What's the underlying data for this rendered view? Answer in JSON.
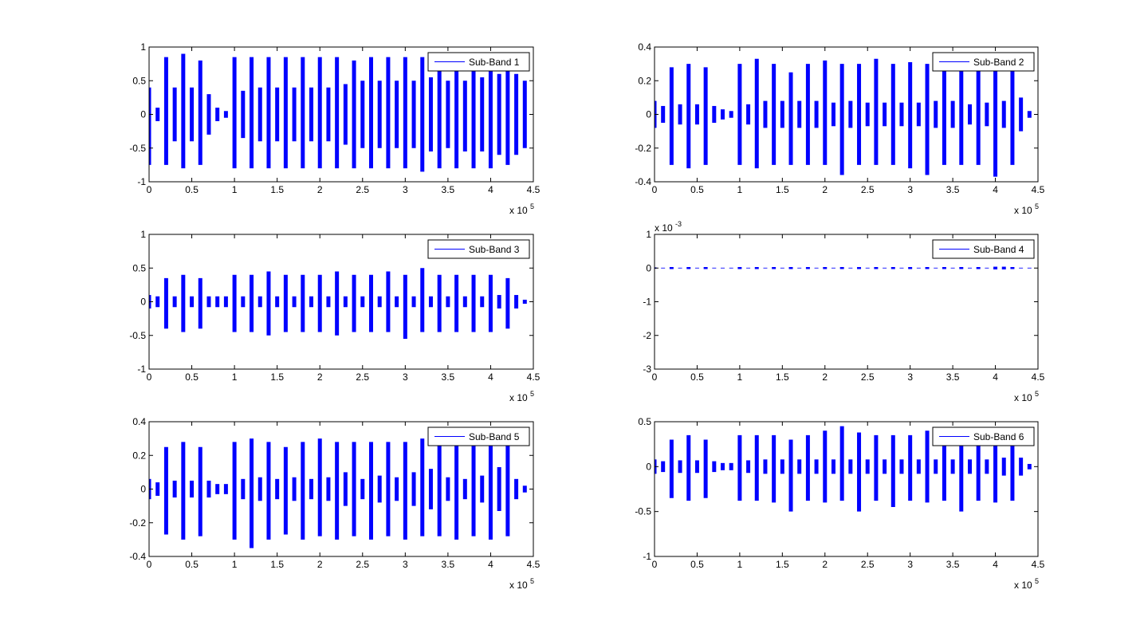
{
  "chart_data": [
    {
      "type": "waveform",
      "x_multiplier": "x 10",
      "x_multiplier_exponent": "5",
      "x": [
        0,
        0.1,
        0.2,
        0.3,
        0.4,
        0.5,
        0.6,
        0.7,
        0.8,
        0.9,
        1,
        1.1,
        1.2,
        1.3,
        1.4,
        1.5,
        1.6,
        1.7,
        1.8,
        1.9,
        2,
        2.1,
        2.2,
        2.3,
        2.4,
        2.5,
        2.6,
        2.7,
        2.8,
        2.9,
        3,
        3.1,
        3.2,
        3.3,
        3.4,
        3.5,
        3.6,
        3.7,
        3.8,
        3.9,
        4,
        4.1,
        4.2,
        4.3,
        4.4
      ],
      "series": [
        {
          "name": "Sub-Band 1",
          "color": "#0000ff",
          "max": [
            0.4,
            0.1,
            0.85,
            0.4,
            0.9,
            0.4,
            0.8,
            0.3,
            0.1,
            0.05,
            0.85,
            0.35,
            0.85,
            0.4,
            0.85,
            0.4,
            0.85,
            0.4,
            0.85,
            0.4,
            0.85,
            0.4,
            0.85,
            0.45,
            0.8,
            0.5,
            0.85,
            0.5,
            0.85,
            0.5,
            0.85,
            0.5,
            0.85,
            0.55,
            0.8,
            0.5,
            0.75,
            0.5,
            0.75,
            0.55,
            0.75,
            0.6,
            0.75,
            0.6,
            0.5
          ],
          "min": [
            -0.75,
            -0.1,
            -0.75,
            -0.4,
            -0.8,
            -0.4,
            -0.75,
            -0.3,
            -0.1,
            -0.05,
            -0.8,
            -0.35,
            -0.8,
            -0.4,
            -0.8,
            -0.4,
            -0.8,
            -0.4,
            -0.8,
            -0.4,
            -0.8,
            -0.4,
            -0.8,
            -0.45,
            -0.8,
            -0.5,
            -0.8,
            -0.5,
            -0.8,
            -0.5,
            -0.8,
            -0.5,
            -0.85,
            -0.55,
            -0.8,
            -0.5,
            -0.8,
            -0.55,
            -0.8,
            -0.55,
            -0.8,
            -0.6,
            -0.75,
            -0.6,
            -0.5
          ]
        }
      ],
      "xlim": [
        0,
        4.5
      ],
      "xticks": [
        0,
        0.5,
        1,
        1.5,
        2,
        2.5,
        3,
        3.5,
        4,
        4.5
      ],
      "ylim": [
        -1,
        1
      ],
      "yticks": [
        -1,
        -0.5,
        0,
        0.5,
        1
      ],
      "legend": "upper right"
    },
    {
      "type": "waveform",
      "x_multiplier": "x 10",
      "x_multiplier_exponent": "5",
      "x": [
        0,
        0.1,
        0.2,
        0.3,
        0.4,
        0.5,
        0.6,
        0.7,
        0.8,
        0.9,
        1,
        1.1,
        1.2,
        1.3,
        1.4,
        1.5,
        1.6,
        1.7,
        1.8,
        1.9,
        2,
        2.1,
        2.2,
        2.3,
        2.4,
        2.5,
        2.6,
        2.7,
        2.8,
        2.9,
        3,
        3.1,
        3.2,
        3.3,
        3.4,
        3.5,
        3.6,
        3.7,
        3.8,
        3.9,
        4,
        4.1,
        4.2,
        4.3,
        4.4
      ],
      "series": [
        {
          "name": "Sub-Band 2",
          "color": "#0000ff",
          "max": [
            0.08,
            0.05,
            0.28,
            0.06,
            0.3,
            0.06,
            0.28,
            0.05,
            0.03,
            0.02,
            0.3,
            0.06,
            0.33,
            0.08,
            0.3,
            0.08,
            0.25,
            0.08,
            0.3,
            0.08,
            0.32,
            0.07,
            0.3,
            0.08,
            0.3,
            0.07,
            0.33,
            0.07,
            0.3,
            0.07,
            0.31,
            0.07,
            0.3,
            0.08,
            0.3,
            0.08,
            0.3,
            0.06,
            0.28,
            0.07,
            0.3,
            0.08,
            0.3,
            0.1,
            0.02
          ],
          "min": [
            -0.08,
            -0.05,
            -0.3,
            -0.06,
            -0.32,
            -0.06,
            -0.3,
            -0.05,
            -0.03,
            -0.02,
            -0.3,
            -0.06,
            -0.32,
            -0.08,
            -0.3,
            -0.08,
            -0.3,
            -0.08,
            -0.3,
            -0.08,
            -0.3,
            -0.07,
            -0.36,
            -0.08,
            -0.3,
            -0.07,
            -0.3,
            -0.07,
            -0.3,
            -0.07,
            -0.32,
            -0.07,
            -0.36,
            -0.08,
            -0.3,
            -0.08,
            -0.3,
            -0.06,
            -0.3,
            -0.07,
            -0.37,
            -0.08,
            -0.3,
            -0.1,
            -0.02
          ]
        }
      ],
      "xlim": [
        0,
        4.5
      ],
      "xticks": [
        0,
        0.5,
        1,
        1.5,
        2,
        2.5,
        3,
        3.5,
        4,
        4.5
      ],
      "ylim": [
        -0.4,
        0.4
      ],
      "yticks": [
        -0.4,
        -0.2,
        0,
        0.2,
        0.4
      ],
      "legend": "upper right"
    },
    {
      "type": "waveform",
      "x_multiplier": "x 10",
      "x_multiplier_exponent": "5",
      "x": [
        0,
        0.1,
        0.2,
        0.3,
        0.4,
        0.5,
        0.6,
        0.7,
        0.8,
        0.9,
        1,
        1.1,
        1.2,
        1.3,
        1.4,
        1.5,
        1.6,
        1.7,
        1.8,
        1.9,
        2,
        2.1,
        2.2,
        2.3,
        2.4,
        2.5,
        2.6,
        2.7,
        2.8,
        2.9,
        3,
        3.1,
        3.2,
        3.3,
        3.4,
        3.5,
        3.6,
        3.7,
        3.8,
        3.9,
        4,
        4.1,
        4.2,
        4.3,
        4.4
      ],
      "series": [
        {
          "name": "Sub-Band 3",
          "color": "#0000ff",
          "max": [
            0.1,
            0.08,
            0.35,
            0.08,
            0.4,
            0.08,
            0.35,
            0.08,
            0.08,
            0.08,
            0.4,
            0.08,
            0.4,
            0.08,
            0.45,
            0.08,
            0.4,
            0.08,
            0.4,
            0.08,
            0.4,
            0.08,
            0.45,
            0.08,
            0.4,
            0.08,
            0.4,
            0.08,
            0.45,
            0.08,
            0.4,
            0.08,
            0.5,
            0.08,
            0.4,
            0.08,
            0.4,
            0.08,
            0.4,
            0.08,
            0.4,
            0.1,
            0.35,
            0.1,
            0.03
          ],
          "min": [
            -0.1,
            -0.08,
            -0.4,
            -0.08,
            -0.45,
            -0.08,
            -0.4,
            -0.08,
            -0.08,
            -0.08,
            -0.45,
            -0.08,
            -0.45,
            -0.08,
            -0.5,
            -0.08,
            -0.45,
            -0.08,
            -0.45,
            -0.08,
            -0.45,
            -0.08,
            -0.5,
            -0.08,
            -0.45,
            -0.08,
            -0.45,
            -0.08,
            -0.45,
            -0.08,
            -0.55,
            -0.08,
            -0.45,
            -0.08,
            -0.45,
            -0.08,
            -0.45,
            -0.08,
            -0.45,
            -0.08,
            -0.45,
            -0.1,
            -0.4,
            -0.1,
            -0.03
          ]
        }
      ],
      "xlim": [
        0,
        4.5
      ],
      "xticks": [
        0,
        0.5,
        1,
        1.5,
        2,
        2.5,
        3,
        3.5,
        4,
        4.5
      ],
      "ylim": [
        -1,
        1
      ],
      "yticks": [
        -1,
        -0.5,
        0,
        0.5,
        1
      ],
      "legend": "upper right"
    },
    {
      "type": "waveform",
      "x_multiplier": "x 10",
      "x_multiplier_exponent": "5",
      "y_multiplier": "x 10",
      "y_multiplier_exponent": "-3",
      "x": [
        0,
        0.1,
        0.2,
        0.3,
        0.4,
        0.5,
        0.6,
        0.7,
        0.8,
        0.9,
        1,
        1.1,
        1.2,
        1.3,
        1.4,
        1.5,
        1.6,
        1.7,
        1.8,
        1.9,
        2,
        2.1,
        2.2,
        2.3,
        2.4,
        2.5,
        2.6,
        2.7,
        2.8,
        2.9,
        3,
        3.1,
        3.2,
        3.3,
        3.4,
        3.5,
        3.6,
        3.7,
        3.8,
        3.9,
        4,
        4.1,
        4.2,
        4.3,
        4.4
      ],
      "series": [
        {
          "name": "Sub-Band 4",
          "color": "#0000ff",
          "max": [
            0.02,
            0.01,
            0.03,
            0.01,
            0.03,
            0.01,
            0.03,
            0.01,
            0.01,
            0.01,
            0.03,
            0.01,
            0.03,
            0.01,
            0.03,
            0.01,
            0.03,
            0.01,
            0.03,
            0.01,
            0.03,
            0.01,
            0.03,
            0.01,
            0.03,
            0.01,
            0.03,
            0.01,
            0.03,
            0.01,
            0.03,
            0.01,
            0.03,
            0.01,
            0.03,
            0.01,
            0.03,
            0.01,
            0.03,
            0.01,
            0.04,
            0.04,
            0.03,
            0.01,
            0.01
          ],
          "min": [
            -0.02,
            -0.01,
            -0.03,
            -0.01,
            -0.03,
            -0.01,
            -0.03,
            -0.01,
            -0.01,
            -0.01,
            -0.03,
            -0.01,
            -0.03,
            -0.01,
            -0.03,
            -0.01,
            -0.03,
            -0.01,
            -0.03,
            -0.01,
            -0.03,
            -0.01,
            -0.03,
            -0.01,
            -0.03,
            -0.01,
            -0.03,
            -0.01,
            -0.03,
            -0.01,
            -0.03,
            -0.01,
            -0.03,
            -0.01,
            -0.03,
            -0.01,
            -0.03,
            -0.01,
            -0.03,
            -0.01,
            -0.04,
            -0.04,
            -0.03,
            -0.01,
            -0.01
          ]
        }
      ],
      "xlim": [
        0,
        4.5
      ],
      "xticks": [
        0,
        0.5,
        1,
        1.5,
        2,
        2.5,
        3,
        3.5,
        4,
        4.5
      ],
      "ylim": [
        -3,
        1
      ],
      "yticks": [
        -3,
        -2,
        -1,
        0,
        1
      ],
      "legend": "upper right"
    },
    {
      "type": "waveform",
      "x_multiplier": "x 10",
      "x_multiplier_exponent": "5",
      "x": [
        0,
        0.1,
        0.2,
        0.3,
        0.4,
        0.5,
        0.6,
        0.7,
        0.8,
        0.9,
        1,
        1.1,
        1.2,
        1.3,
        1.4,
        1.5,
        1.6,
        1.7,
        1.8,
        1.9,
        2,
        2.1,
        2.2,
        2.3,
        2.4,
        2.5,
        2.6,
        2.7,
        2.8,
        2.9,
        3,
        3.1,
        3.2,
        3.3,
        3.4,
        3.5,
        3.6,
        3.7,
        3.8,
        3.9,
        4,
        4.1,
        4.2,
        4.3,
        4.4
      ],
      "series": [
        {
          "name": "Sub-Band 5",
          "color": "#0000ff",
          "max": [
            0.06,
            0.04,
            0.25,
            0.05,
            0.28,
            0.05,
            0.25,
            0.05,
            0.03,
            0.03,
            0.28,
            0.06,
            0.3,
            0.07,
            0.28,
            0.06,
            0.25,
            0.07,
            0.28,
            0.06,
            0.3,
            0.07,
            0.28,
            0.1,
            0.28,
            0.06,
            0.28,
            0.08,
            0.28,
            0.07,
            0.28,
            0.1,
            0.3,
            0.12,
            0.26,
            0.07,
            0.28,
            0.06,
            0.26,
            0.08,
            0.28,
            0.13,
            0.26,
            0.06,
            0.02
          ],
          "min": [
            -0.06,
            -0.04,
            -0.27,
            -0.05,
            -0.3,
            -0.05,
            -0.28,
            -0.05,
            -0.03,
            -0.03,
            -0.3,
            -0.06,
            -0.35,
            -0.07,
            -0.3,
            -0.06,
            -0.27,
            -0.07,
            -0.3,
            -0.06,
            -0.28,
            -0.07,
            -0.3,
            -0.1,
            -0.28,
            -0.06,
            -0.3,
            -0.08,
            -0.28,
            -0.07,
            -0.3,
            -0.1,
            -0.28,
            -0.12,
            -0.28,
            -0.07,
            -0.3,
            -0.06,
            -0.28,
            -0.08,
            -0.3,
            -0.13,
            -0.28,
            -0.06,
            -0.02
          ]
        }
      ],
      "xlim": [
        0,
        4.5
      ],
      "xticks": [
        0,
        0.5,
        1,
        1.5,
        2,
        2.5,
        3,
        3.5,
        4,
        4.5
      ],
      "ylim": [
        -0.4,
        0.4
      ],
      "yticks": [
        -0.4,
        -0.2,
        0,
        0.2,
        0.4
      ],
      "legend": "upper right"
    },
    {
      "type": "waveform",
      "x_multiplier": "x 10",
      "x_multiplier_exponent": "5",
      "x": [
        0,
        0.1,
        0.2,
        0.3,
        0.4,
        0.5,
        0.6,
        0.7,
        0.8,
        0.9,
        1,
        1.1,
        1.2,
        1.3,
        1.4,
        1.5,
        1.6,
        1.7,
        1.8,
        1.9,
        2,
        2.1,
        2.2,
        2.3,
        2.4,
        2.5,
        2.6,
        2.7,
        2.8,
        2.9,
        3,
        3.1,
        3.2,
        3.3,
        3.4,
        3.5,
        3.6,
        3.7,
        3.8,
        3.9,
        4,
        4.1,
        4.2,
        4.3,
        4.4
      ],
      "series": [
        {
          "name": "Sub-Band 6",
          "color": "#0000ff",
          "max": [
            0.08,
            0.06,
            0.3,
            0.07,
            0.35,
            0.07,
            0.3,
            0.06,
            0.04,
            0.04,
            0.35,
            0.07,
            0.35,
            0.08,
            0.35,
            0.08,
            0.3,
            0.08,
            0.35,
            0.08,
            0.4,
            0.08,
            0.45,
            0.08,
            0.38,
            0.08,
            0.35,
            0.08,
            0.35,
            0.08,
            0.35,
            0.08,
            0.4,
            0.08,
            0.35,
            0.08,
            0.35,
            0.08,
            0.35,
            0.08,
            0.38,
            0.1,
            0.35,
            0.1,
            0.03
          ],
          "min": [
            -0.08,
            -0.06,
            -0.35,
            -0.07,
            -0.38,
            -0.07,
            -0.35,
            -0.06,
            -0.04,
            -0.04,
            -0.38,
            -0.07,
            -0.38,
            -0.08,
            -0.4,
            -0.08,
            -0.5,
            -0.08,
            -0.38,
            -0.08,
            -0.4,
            -0.08,
            -0.38,
            -0.08,
            -0.5,
            -0.08,
            -0.38,
            -0.08,
            -0.45,
            -0.08,
            -0.38,
            -0.08,
            -0.4,
            -0.08,
            -0.38,
            -0.08,
            -0.5,
            -0.08,
            -0.38,
            -0.08,
            -0.4,
            -0.1,
            -0.38,
            -0.1,
            -0.03
          ]
        }
      ],
      "xlim": [
        0,
        4.5
      ],
      "xticks": [
        0,
        0.5,
        1,
        1.5,
        2,
        2.5,
        3,
        3.5,
        4,
        4.5
      ],
      "ylim": [
        -1,
        0.5
      ],
      "yticks": [
        -1,
        -0.5,
        0,
        0.5
      ],
      "legend": "upper right"
    }
  ]
}
